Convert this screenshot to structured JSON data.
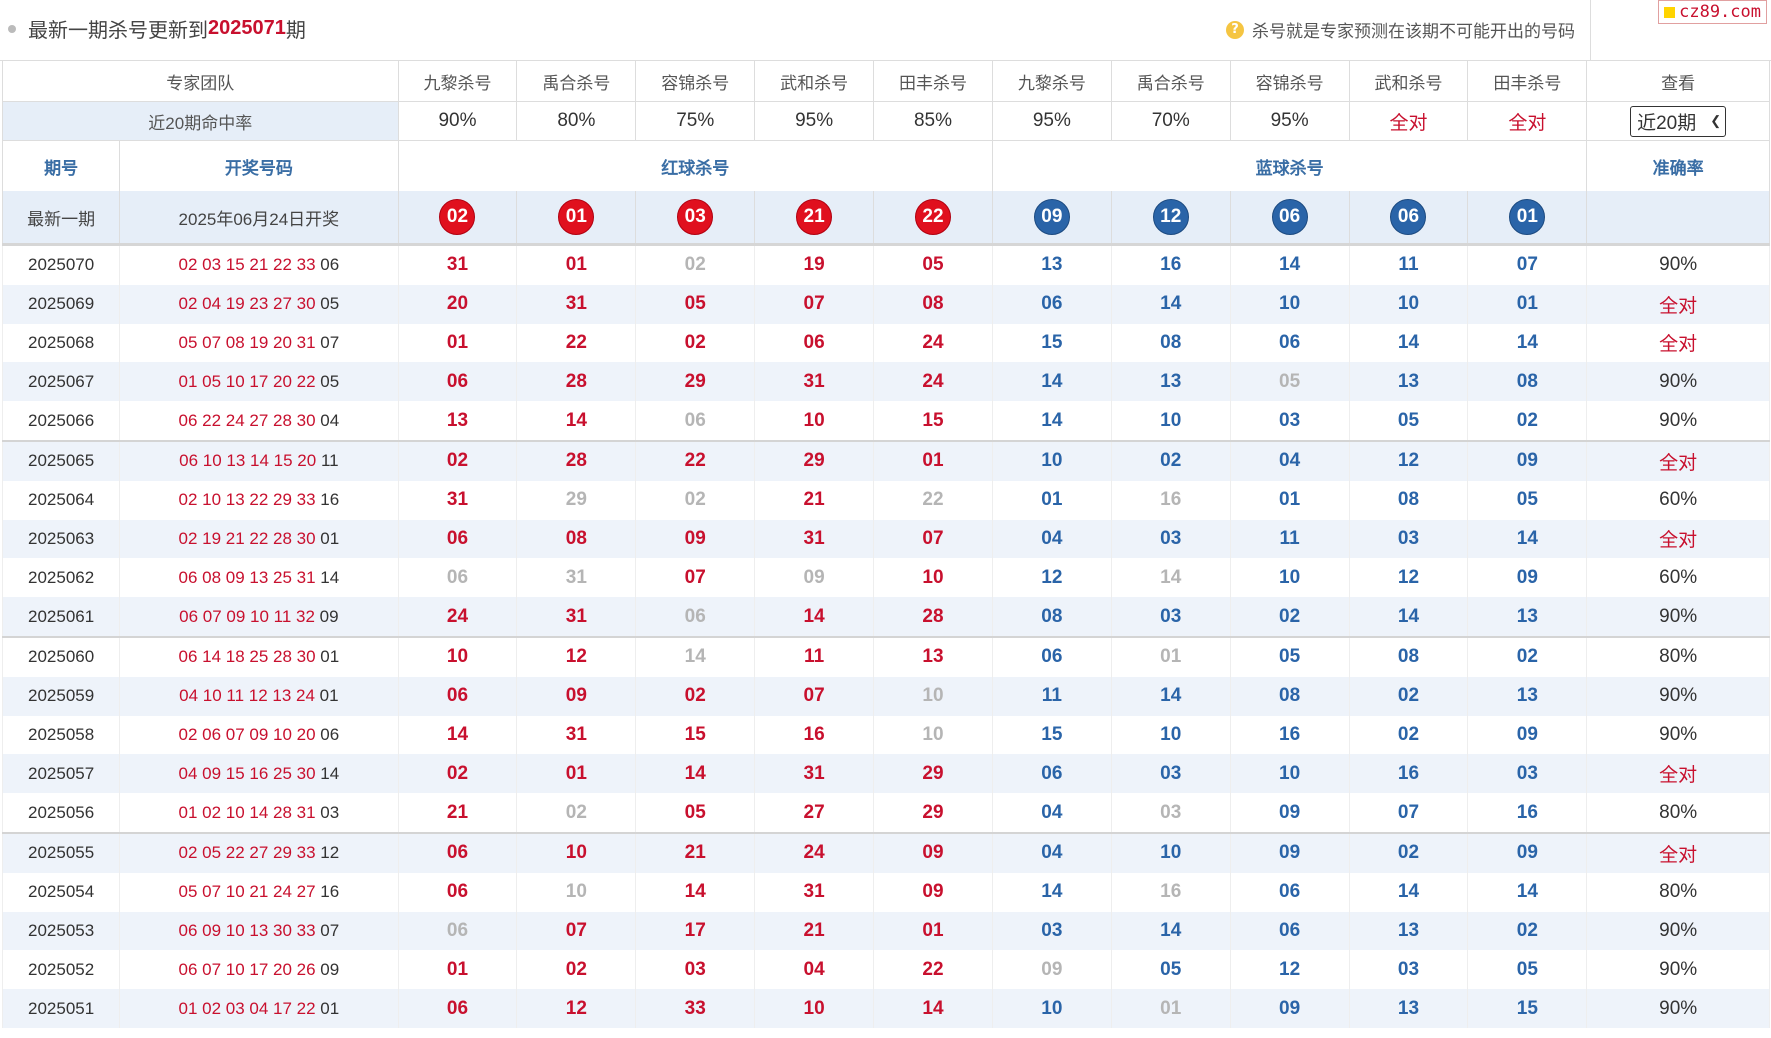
{
  "header": {
    "title_prefix": "最新一期杀号更新到",
    "issue": "2025071",
    "title_suffix": "期",
    "note": "杀号就是专家预测在该期不可能开出的号码",
    "brand": "cz89.com"
  },
  "experts": {
    "team_label": "专家团队",
    "view_label": "查看",
    "names": [
      "九黎杀号",
      "禹合杀号",
      "容锦杀号",
      "武和杀号",
      "田丰杀号",
      "九黎杀号",
      "禹合杀号",
      "容锦杀号",
      "武和杀号",
      "田丰杀号"
    ],
    "rate_label": "近20期命中率",
    "rates": [
      "90%",
      "80%",
      "75%",
      "95%",
      "85%",
      "95%",
      "70%",
      "95%",
      "全对",
      "全对"
    ],
    "period_select": "近20期"
  },
  "columns": {
    "issue": "期号",
    "draw": "开奖号码",
    "red_kill": "红球杀号",
    "blue_kill": "蓝球杀号",
    "accuracy": "准确率"
  },
  "latest": {
    "label": "最新一期",
    "date": "2025年06月24日开奖",
    "red_balls": [
      "02",
      "01",
      "03",
      "21",
      "22"
    ],
    "blue_balls": [
      "09",
      "12",
      "06",
      "06",
      "01"
    ]
  },
  "rows": [
    {
      "issue": "2025070",
      "draw_red": "02 03 15 21 22 33",
      "draw_blue": "06",
      "red": [
        "31",
        "01",
        "02",
        "19",
        "05"
      ],
      "red_miss": [
        false,
        false,
        true,
        false,
        false
      ],
      "blue": [
        "13",
        "16",
        "14",
        "11",
        "07"
      ],
      "blue_miss": [
        false,
        false,
        false,
        false,
        false
      ],
      "acc": "90%"
    },
    {
      "issue": "2025069",
      "draw_red": "02 04 19 23 27 30",
      "draw_blue": "05",
      "red": [
        "20",
        "31",
        "05",
        "07",
        "08"
      ],
      "red_miss": [
        false,
        false,
        false,
        false,
        false
      ],
      "blue": [
        "06",
        "14",
        "10",
        "10",
        "01"
      ],
      "blue_miss": [
        false,
        false,
        false,
        false,
        false
      ],
      "acc": "全对"
    },
    {
      "issue": "2025068",
      "draw_red": "05 07 08 19 20 31",
      "draw_blue": "07",
      "red": [
        "01",
        "22",
        "02",
        "06",
        "24"
      ],
      "red_miss": [
        false,
        false,
        false,
        false,
        false
      ],
      "blue": [
        "15",
        "08",
        "06",
        "14",
        "14"
      ],
      "blue_miss": [
        false,
        false,
        false,
        false,
        false
      ],
      "acc": "全对"
    },
    {
      "issue": "2025067",
      "draw_red": "01 05 10 17 20 22",
      "draw_blue": "05",
      "red": [
        "06",
        "28",
        "29",
        "31",
        "24"
      ],
      "red_miss": [
        false,
        false,
        false,
        false,
        false
      ],
      "blue": [
        "14",
        "13",
        "05",
        "13",
        "08"
      ],
      "blue_miss": [
        false,
        false,
        true,
        false,
        false
      ],
      "acc": "90%"
    },
    {
      "issue": "2025066",
      "draw_red": "06 22 24 27 28 30",
      "draw_blue": "04",
      "red": [
        "13",
        "14",
        "06",
        "10",
        "15"
      ],
      "red_miss": [
        false,
        false,
        true,
        false,
        false
      ],
      "blue": [
        "14",
        "10",
        "03",
        "05",
        "02"
      ],
      "blue_miss": [
        false,
        false,
        false,
        false,
        false
      ],
      "acc": "90%"
    },
    {
      "issue": "2025065",
      "draw_red": "06 10 13 14 15 20",
      "draw_blue": "11",
      "red": [
        "02",
        "28",
        "22",
        "29",
        "01"
      ],
      "red_miss": [
        false,
        false,
        false,
        false,
        false
      ],
      "blue": [
        "10",
        "02",
        "04",
        "12",
        "09"
      ],
      "blue_miss": [
        false,
        false,
        false,
        false,
        false
      ],
      "acc": "全对"
    },
    {
      "issue": "2025064",
      "draw_red": "02 10 13 22 29 33",
      "draw_blue": "16",
      "red": [
        "31",
        "29",
        "02",
        "21",
        "22"
      ],
      "red_miss": [
        false,
        true,
        true,
        false,
        true
      ],
      "blue": [
        "01",
        "16",
        "01",
        "08",
        "05"
      ],
      "blue_miss": [
        false,
        true,
        false,
        false,
        false
      ],
      "acc": "60%"
    },
    {
      "issue": "2025063",
      "draw_red": "02 19 21 22 28 30",
      "draw_blue": "01",
      "red": [
        "06",
        "08",
        "09",
        "31",
        "07"
      ],
      "red_miss": [
        false,
        false,
        false,
        false,
        false
      ],
      "blue": [
        "04",
        "03",
        "11",
        "03",
        "14"
      ],
      "blue_miss": [
        false,
        false,
        false,
        false,
        false
      ],
      "acc": "全对"
    },
    {
      "issue": "2025062",
      "draw_red": "06 08 09 13 25 31",
      "draw_blue": "14",
      "red": [
        "06",
        "31",
        "07",
        "09",
        "10"
      ],
      "red_miss": [
        true,
        true,
        false,
        true,
        false
      ],
      "blue": [
        "12",
        "14",
        "10",
        "12",
        "09"
      ],
      "blue_miss": [
        false,
        true,
        false,
        false,
        false
      ],
      "acc": "60%"
    },
    {
      "issue": "2025061",
      "draw_red": "06 07 09 10 11 32",
      "draw_blue": "09",
      "red": [
        "24",
        "31",
        "06",
        "14",
        "28"
      ],
      "red_miss": [
        false,
        false,
        true,
        false,
        false
      ],
      "blue": [
        "08",
        "03",
        "02",
        "14",
        "13"
      ],
      "blue_miss": [
        false,
        false,
        false,
        false,
        false
      ],
      "acc": "90%"
    },
    {
      "issue": "2025060",
      "draw_red": "06 14 18 25 28 30",
      "draw_blue": "01",
      "red": [
        "10",
        "12",
        "14",
        "11",
        "13"
      ],
      "red_miss": [
        false,
        false,
        true,
        false,
        false
      ],
      "blue": [
        "06",
        "01",
        "05",
        "08",
        "02"
      ],
      "blue_miss": [
        false,
        true,
        false,
        false,
        false
      ],
      "acc": "80%"
    },
    {
      "issue": "2025059",
      "draw_red": "04 10 11 12 13 24",
      "draw_blue": "01",
      "red": [
        "06",
        "09",
        "02",
        "07",
        "10"
      ],
      "red_miss": [
        false,
        false,
        false,
        false,
        true
      ],
      "blue": [
        "11",
        "14",
        "08",
        "02",
        "13"
      ],
      "blue_miss": [
        false,
        false,
        false,
        false,
        false
      ],
      "acc": "90%"
    },
    {
      "issue": "2025058",
      "draw_red": "02 06 07 09 10 20",
      "draw_blue": "06",
      "red": [
        "14",
        "31",
        "15",
        "16",
        "10"
      ],
      "red_miss": [
        false,
        false,
        false,
        false,
        true
      ],
      "blue": [
        "15",
        "10",
        "16",
        "02",
        "09"
      ],
      "blue_miss": [
        false,
        false,
        false,
        false,
        false
      ],
      "acc": "90%"
    },
    {
      "issue": "2025057",
      "draw_red": "04 09 15 16 25 30",
      "draw_blue": "14",
      "red": [
        "02",
        "01",
        "14",
        "31",
        "29"
      ],
      "red_miss": [
        false,
        false,
        false,
        false,
        false
      ],
      "blue": [
        "06",
        "03",
        "10",
        "16",
        "03"
      ],
      "blue_miss": [
        false,
        false,
        false,
        false,
        false
      ],
      "acc": "全对"
    },
    {
      "issue": "2025056",
      "draw_red": "01 02 10 14 28 31",
      "draw_blue": "03",
      "red": [
        "21",
        "02",
        "05",
        "27",
        "29"
      ],
      "red_miss": [
        false,
        true,
        false,
        false,
        false
      ],
      "blue": [
        "04",
        "03",
        "09",
        "07",
        "16"
      ],
      "blue_miss": [
        false,
        true,
        false,
        false,
        false
      ],
      "acc": "80%"
    },
    {
      "issue": "2025055",
      "draw_red": "02 05 22 27 29 33",
      "draw_blue": "12",
      "red": [
        "06",
        "10",
        "21",
        "24",
        "09"
      ],
      "red_miss": [
        false,
        false,
        false,
        false,
        false
      ],
      "blue": [
        "04",
        "10",
        "09",
        "02",
        "09"
      ],
      "blue_miss": [
        false,
        false,
        false,
        false,
        false
      ],
      "acc": "全对"
    },
    {
      "issue": "2025054",
      "draw_red": "05 07 10 21 24 27",
      "draw_blue": "16",
      "red": [
        "06",
        "10",
        "14",
        "31",
        "09"
      ],
      "red_miss": [
        false,
        true,
        false,
        false,
        false
      ],
      "blue": [
        "14",
        "16",
        "06",
        "14",
        "14"
      ],
      "blue_miss": [
        false,
        true,
        false,
        false,
        false
      ],
      "acc": "80%"
    },
    {
      "issue": "2025053",
      "draw_red": "06 09 10 13 30 33",
      "draw_blue": "07",
      "red": [
        "06",
        "07",
        "17",
        "21",
        "01"
      ],
      "red_miss": [
        true,
        false,
        false,
        false,
        false
      ],
      "blue": [
        "03",
        "14",
        "06",
        "13",
        "02"
      ],
      "blue_miss": [
        false,
        false,
        false,
        false,
        false
      ],
      "acc": "90%"
    },
    {
      "issue": "2025052",
      "draw_red": "06 07 10 17 20 26",
      "draw_blue": "09",
      "red": [
        "01",
        "02",
        "03",
        "04",
        "22"
      ],
      "red_miss": [
        false,
        false,
        false,
        false,
        false
      ],
      "blue": [
        "09",
        "05",
        "12",
        "03",
        "05"
      ],
      "blue_miss": [
        true,
        false,
        false,
        false,
        false
      ],
      "acc": "90%"
    },
    {
      "issue": "2025051",
      "draw_red": "01 02 03 04 17 22",
      "draw_blue": "01",
      "red": [
        "06",
        "12",
        "33",
        "10",
        "14"
      ],
      "red_miss": [
        false,
        false,
        false,
        false,
        false
      ],
      "blue": [
        "10",
        "01",
        "09",
        "13",
        "15"
      ],
      "blue_miss": [
        false,
        true,
        false,
        false,
        false
      ],
      "acc": "90%"
    }
  ]
}
